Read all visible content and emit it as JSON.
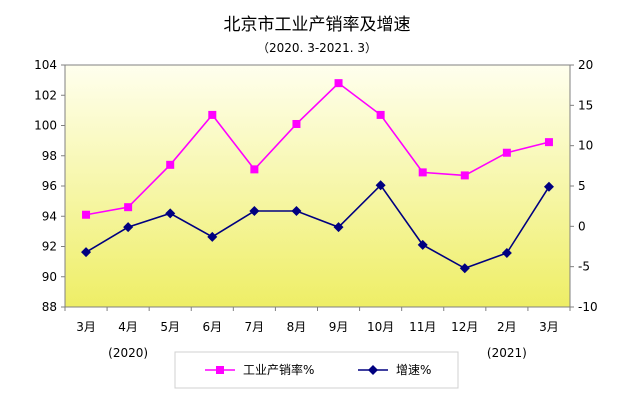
{
  "chart_data": {
    "type": "line",
    "title": "北京市工业产销率及增速",
    "subtitle": "（2020. 3-2021. 3）",
    "categories": [
      "3月",
      "4月",
      "5月",
      "6月",
      "7月",
      "8月",
      "9月",
      "10月",
      "11月",
      "12月",
      "2月",
      "3月"
    ],
    "year_labels": [
      {
        "text": "(2020)",
        "category_index": 1
      },
      {
        "text": "(2021)",
        "category_index": 10
      }
    ],
    "y_left": {
      "range": [
        88,
        104
      ],
      "ticks": [
        88,
        90,
        92,
        94,
        96,
        98,
        100,
        102,
        104
      ],
      "tick_labels": [
        "88",
        "90",
        "92",
        "94",
        "96",
        "98",
        "100",
        "102",
        "104"
      ]
    },
    "y_right": {
      "range": [
        -10,
        20
      ],
      "ticks": [
        -10,
        -5,
        0,
        5,
        10,
        15,
        20
      ],
      "tick_labels": [
        "-10",
        "-5",
        "0",
        "5",
        "10",
        "15",
        "20"
      ]
    },
    "grid": false,
    "legend_position": "bottom",
    "series": [
      {
        "name": "工业产销率%",
        "axis": "left",
        "color": "#ff00ff",
        "marker": "square",
        "values": [
          94.1,
          94.6,
          97.4,
          100.7,
          97.1,
          100.1,
          102.8,
          100.7,
          96.9,
          96.7,
          98.2,
          98.9
        ]
      },
      {
        "name": "增速%",
        "axis": "right",
        "color": "#000080",
        "marker": "diamond",
        "values": [
          -3.2,
          -0.1,
          1.6,
          -1.3,
          1.9,
          1.9,
          -0.1,
          5.1,
          -2.3,
          -5.2,
          -3.3,
          4.9
        ]
      }
    ],
    "colors": {
      "plot_gradient_top": "#ffffee",
      "plot_gradient_bottom": "#eeee66",
      "axis": "#808080"
    }
  }
}
